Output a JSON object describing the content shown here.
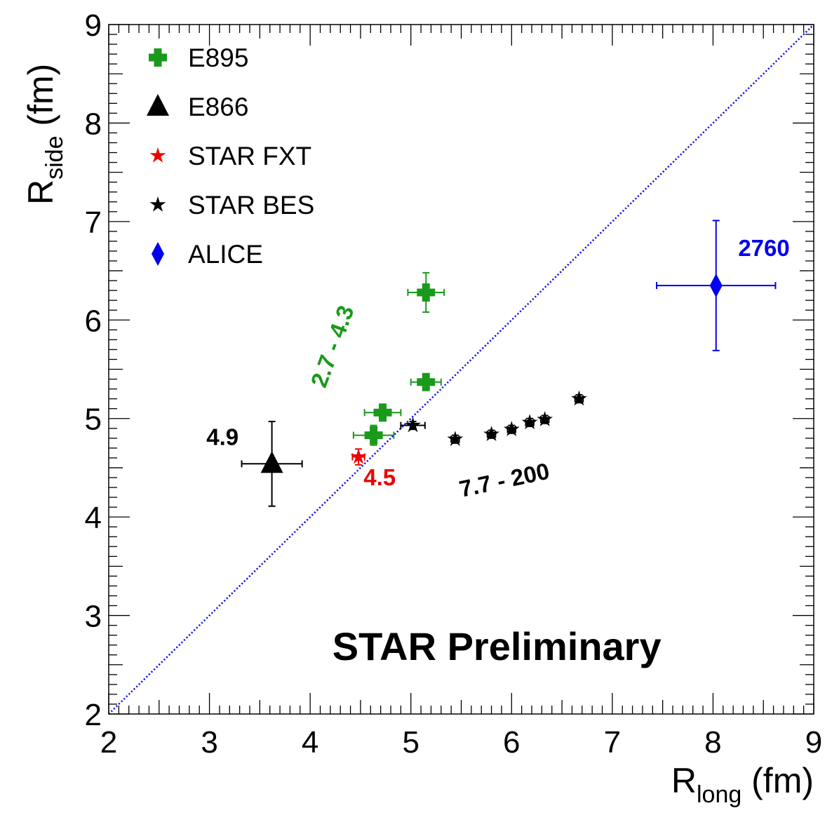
{
  "chart_data": {
    "type": "scatter",
    "xlabel": {
      "main": "R",
      "sub": "long",
      "unit": " (fm)"
    },
    "ylabel": {
      "main": "R",
      "sub": "side",
      "unit": " (fm)"
    },
    "xlim": [
      2,
      9
    ],
    "ylim": [
      2,
      9
    ],
    "xticks": [
      "2",
      "3",
      "4",
      "5",
      "6",
      "7",
      "8",
      "9"
    ],
    "yticks": [
      "2",
      "3",
      "4",
      "5",
      "6",
      "7",
      "8",
      "9"
    ],
    "grid": false,
    "legend_position": "top-left",
    "reference_line": {
      "style": "dotted",
      "color": "#0000ee",
      "from": [
        2,
        2
      ],
      "to": [
        9,
        9
      ]
    },
    "series": [
      {
        "name": "E895",
        "marker": "cross",
        "color": "#1a9a1a",
        "points": [
          {
            "x": 5.15,
            "y": 6.28,
            "xerr": 0.18,
            "yerr": 0.2
          },
          {
            "x": 5.15,
            "y": 5.37,
            "xerr": 0.15,
            "yerr": 0.07
          },
          {
            "x": 4.72,
            "y": 5.06,
            "xerr": 0.18,
            "yerr": 0.08
          },
          {
            "x": 4.63,
            "y": 4.83,
            "xerr": 0.2,
            "yerr": 0.1
          }
        ]
      },
      {
        "name": "E866",
        "marker": "triangle",
        "color": "#000000",
        "points": [
          {
            "x": 3.62,
            "y": 4.54,
            "xerr": 0.3,
            "yerr": 0.43
          }
        ]
      },
      {
        "name": "STAR FXT",
        "marker": "star",
        "color": "#ee0000",
        "points": [
          {
            "x": 4.48,
            "y": 4.61,
            "xerr": 0.06,
            "yerr": 0.08
          }
        ]
      },
      {
        "name": "STAR BES",
        "marker": "star",
        "color": "#000000",
        "points": [
          {
            "x": 5.02,
            "y": 4.93,
            "xerr": 0.12,
            "yerr": 0.04
          },
          {
            "x": 5.44,
            "y": 4.79,
            "xerr": 0.04,
            "yerr": 0.04
          },
          {
            "x": 5.8,
            "y": 4.84,
            "xerr": 0.04,
            "yerr": 0.04
          },
          {
            "x": 6.0,
            "y": 4.89,
            "xerr": 0.04,
            "yerr": 0.04
          },
          {
            "x": 6.18,
            "y": 4.96,
            "xerr": 0.04,
            "yerr": 0.04
          },
          {
            "x": 6.33,
            "y": 4.99,
            "xerr": 0.04,
            "yerr": 0.04
          },
          {
            "x": 6.67,
            "y": 5.2,
            "xerr": 0.04,
            "yerr": 0.04
          }
        ]
      },
      {
        "name": "ALICE",
        "marker": "diamond",
        "color": "#0000ee",
        "points": [
          {
            "x": 8.03,
            "y": 6.35,
            "xerr": 0.59,
            "yerr": 0.66
          }
        ]
      }
    ],
    "annotations": [
      {
        "text": "2760",
        "color": "#0000ee",
        "x": 8.25,
        "y": 6.65,
        "rotate": 0
      },
      {
        "text": "2.7 - 4.3",
        "color": "#1a9a1a",
        "x": 4.15,
        "y": 5.3,
        "rotate": -70
      },
      {
        "text": "4.9",
        "color": "#000000",
        "x": 2.97,
        "y": 4.73,
        "rotate": 0
      },
      {
        "text": "4.5",
        "color": "#ee0000",
        "x": 4.53,
        "y": 4.32,
        "rotate": 0
      },
      {
        "text": "7.7 - 200",
        "color": "#000000",
        "x": 5.5,
        "y": 4.2,
        "rotate": -12
      },
      {
        "text": "STAR Preliminary",
        "color": "#000000",
        "x": 4.22,
        "y": 2.55,
        "rotate": 0
      }
    ]
  }
}
